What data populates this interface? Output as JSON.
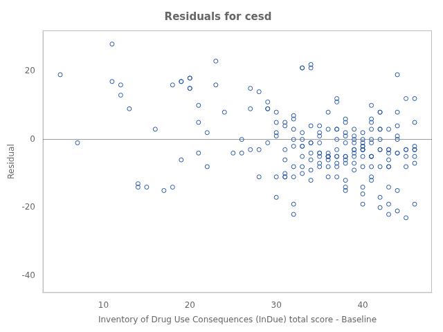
{
  "chart_data": {
    "type": "scatter",
    "title": "Residuals for cesd",
    "xlabel": "Inventory of Drug Use Consequences (InDue) total score - Baseline",
    "ylabel": "Residual",
    "xlim": [
      3,
      48
    ],
    "ylim": [
      -45,
      32
    ],
    "xticks": [
      10,
      20,
      30,
      40
    ],
    "yticks": [
      -40,
      -20,
      0,
      20
    ],
    "color": "#2255aa",
    "marker": "circle",
    "grid": false,
    "hline": {
      "value": 0,
      "color": "#999999"
    },
    "x": [
      5,
      7,
      11,
      11,
      12,
      12,
      13,
      14,
      14,
      15,
      16,
      17,
      18,
      18,
      19,
      19,
      19,
      20,
      20,
      20,
      20,
      21,
      21,
      21,
      22,
      22,
      23,
      23,
      24,
      25,
      26,
      26,
      27,
      27,
      27,
      28,
      28,
      28,
      29,
      29,
      29,
      29,
      30,
      30,
      30,
      30,
      30,
      30,
      31,
      31,
      31,
      31,
      31,
      31,
      31,
      32,
      32,
      32,
      32,
      32,
      32,
      32,
      32,
      32,
      33,
      33,
      33,
      33,
      33,
      33,
      33,
      33,
      33,
      34,
      34,
      34,
      34,
      34,
      34,
      34,
      34,
      34,
      35,
      35,
      35,
      35,
      35,
      35,
      35,
      35,
      35,
      36,
      36,
      36,
      36,
      36,
      36,
      36,
      36,
      36,
      36,
      37,
      37,
      37,
      37,
      37,
      37,
      37,
      37,
      37,
      37,
      37,
      38,
      38,
      38,
      38,
      38,
      38,
      38,
      38,
      38,
      38,
      38,
      38,
      39,
      39,
      39,
      39,
      39,
      39,
      39,
      39,
      39,
      39,
      40,
      40,
      40,
      40,
      40,
      40,
      40,
      40,
      40,
      40,
      40,
      40,
      40,
      41,
      41,
      41,
      41,
      41,
      41,
      41,
      41,
      41,
      41,
      41,
      41,
      42,
      42,
      42,
      42,
      42,
      42,
      42,
      42,
      42,
      42,
      43,
      43,
      43,
      43,
      43,
      43,
      43,
      43,
      43,
      43,
      44,
      44,
      44,
      44,
      44,
      44,
      44,
      44,
      44,
      45,
      45,
      45,
      45,
      45,
      45,
      46,
      46,
      46,
      46,
      46,
      46,
      46,
      46
    ],
    "values": [
      19,
      -1,
      28,
      17,
      16,
      13,
      9,
      -13,
      -14,
      -14,
      3,
      -15,
      -14,
      16,
      -6,
      17,
      17,
      15,
      15,
      18,
      18,
      10,
      5,
      -4,
      -8,
      2,
      23,
      16,
      8,
      -4,
      0,
      -4,
      -3,
      9,
      15,
      -3,
      14,
      -11,
      -1,
      9,
      9,
      11,
      5,
      2,
      -11,
      8,
      -17,
      1,
      -6,
      -3,
      4,
      5,
      -10,
      -11,
      -11,
      -2,
      -11,
      -8,
      6,
      0,
      -19,
      -22,
      3,
      7,
      -5,
      -8,
      -10,
      2,
      -2,
      0,
      -2,
      21,
      21,
      -6,
      -9,
      -1,
      -1,
      4,
      -4,
      -12,
      21,
      22,
      1,
      4,
      -5,
      -4,
      -8,
      -7,
      2,
      -1,
      -4,
      -5,
      -11,
      -4,
      8,
      -8,
      -6,
      -5,
      -5,
      -5,
      3,
      -11,
      3,
      3,
      0,
      -5,
      -7,
      11,
      -8,
      -5,
      -3,
      12,
      -12,
      5,
      -5,
      -5,
      -15,
      -14,
      -7,
      -1,
      1,
      2,
      -6,
      6,
      -4,
      -7,
      -9,
      0,
      1,
      -3,
      -1,
      3,
      -3,
      -5,
      -14,
      -3,
      -16,
      -8,
      0,
      -1,
      -3,
      -3,
      -2,
      -5,
      -2,
      -19,
      2,
      -8,
      -5,
      -11,
      -12,
      -5,
      -1,
      3,
      5,
      6,
      -5,
      0,
      10,
      -20,
      -17,
      -8,
      0,
      8,
      -3,
      8,
      3,
      -3,
      3,
      -19,
      -6,
      -8,
      3,
      -3,
      -8,
      -22,
      -4,
      -14,
      -3,
      -4,
      -21,
      -15,
      1,
      0,
      4,
      8,
      19,
      -4,
      -23,
      -3,
      12,
      -8,
      -3,
      -5,
      -3,
      -2,
      -7,
      12,
      5,
      -19,
      -3,
      -5
    ]
  }
}
